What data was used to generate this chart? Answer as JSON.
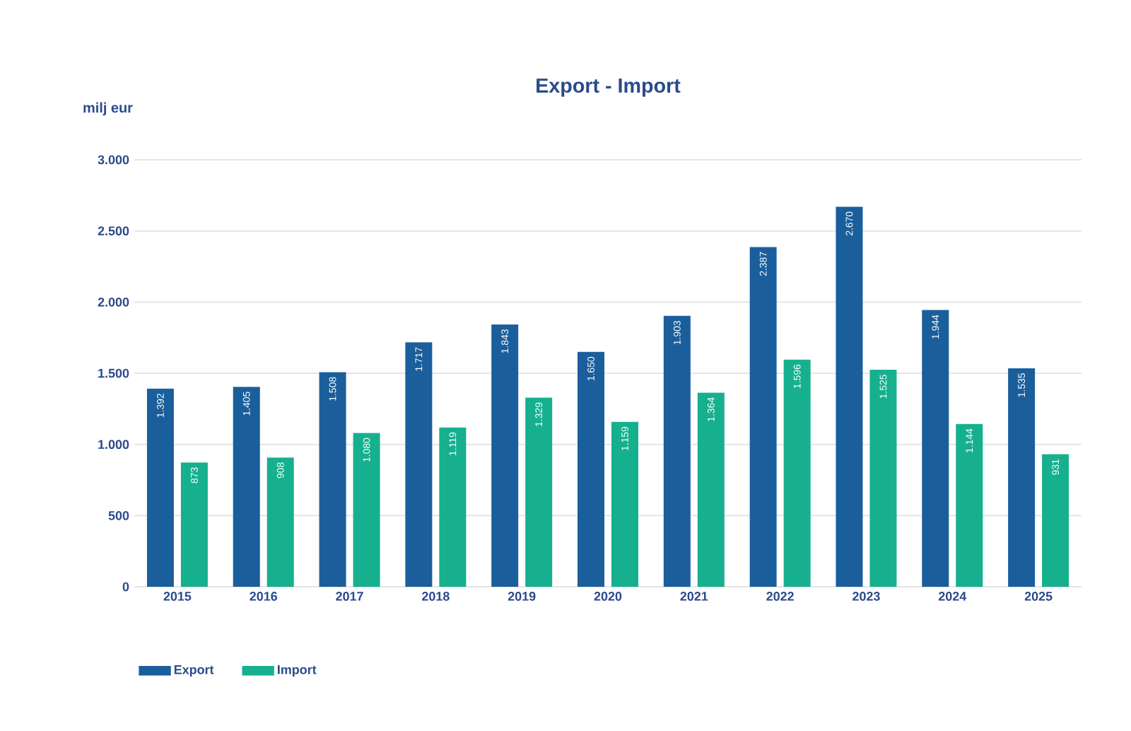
{
  "chart_data": {
    "type": "bar",
    "title": "Export - Import",
    "ylabel": "milj eur",
    "categories": [
      "2015",
      "2016",
      "2017",
      "2018",
      "2019",
      "2020",
      "2021",
      "2022",
      "2023",
      "2024",
      "2025"
    ],
    "series": [
      {
        "name": "Export",
        "color": "#1b5e9c",
        "values": [
          1392,
          1405,
          1508,
          1717,
          1843,
          1650,
          1903,
          2387,
          2670,
          1944,
          1535
        ],
        "value_labels": [
          "1.392",
          "1.405",
          "1.508",
          "1.717",
          "1.843",
          "1.650",
          "1.903",
          "2.387",
          "2.670",
          "1.944",
          "1.535"
        ]
      },
      {
        "name": "Import",
        "color": "#16b08e",
        "values": [
          873,
          908,
          1080,
          1119,
          1329,
          1159,
          1364,
          1596,
          1525,
          1144,
          931
        ],
        "value_labels": [
          "873",
          "908",
          "1.080",
          "1.119",
          "1.329",
          "1.159",
          "1.364",
          "1.596",
          "1.525",
          "1.144",
          "931"
        ]
      }
    ],
    "ylim": [
      0,
      3000
    ],
    "yticks": [
      {
        "value": 0,
        "label": "0"
      },
      {
        "value": 500,
        "label": "500"
      },
      {
        "value": 1000,
        "label": "1.000"
      },
      {
        "value": 1500,
        "label": "1.500"
      },
      {
        "value": 2000,
        "label": "2.000"
      },
      {
        "value": 2500,
        "label": "2.500"
      },
      {
        "value": 3000,
        "label": "3.000"
      }
    ],
    "grid": "y",
    "legend": "bottom"
  }
}
